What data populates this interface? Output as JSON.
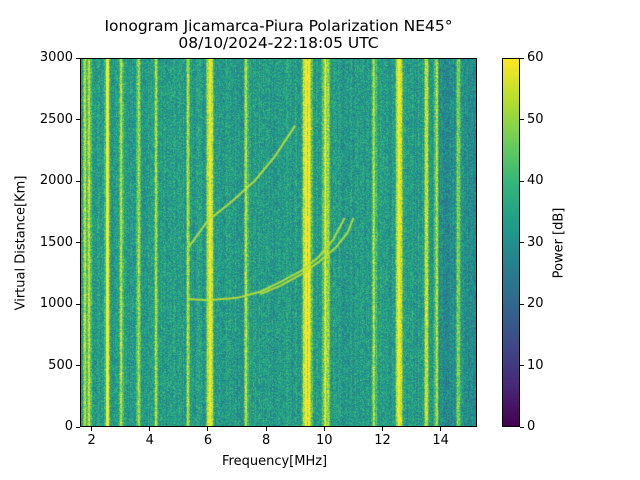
{
  "chart_data": {
    "type": "heatmap",
    "title": "Ionogram Jicamarca-Piura Polarization NE45°",
    "subtitle": "08/10/2024-22:18:05 UTC",
    "xlabel": "Frequency[MHz]",
    "ylabel": "Virtual Distance[Km]",
    "xlim": [
      1.6,
      15.25
    ],
    "ylim": [
      0,
      3000
    ],
    "xticks": [
      "2",
      "4",
      "6",
      "8",
      "10",
      "12",
      "14"
    ],
    "yticks": [
      "0",
      "500",
      "1000",
      "1500",
      "2000",
      "2500",
      "3000"
    ],
    "colorbar": {
      "label": "Power [dB]",
      "range": [
        0,
        60
      ],
      "ticks": [
        "0",
        "10",
        "20",
        "30",
        "40",
        "50",
        "60"
      ],
      "colormap": "viridis"
    },
    "background_power_db": 33,
    "interference_frequencies_mhz": [
      1.75,
      1.9,
      2.5,
      2.55,
      3.0,
      3.6,
      4.2,
      5.3,
      6.0,
      6.1,
      7.3,
      9.3,
      9.4,
      9.5,
      10.0,
      10.1,
      11.7,
      12.5,
      12.6,
      13.5,
      13.85,
      14.6
    ],
    "traces": [
      {
        "name": "one-hop-O",
        "x": [
          5.3,
          6.0,
          7.0,
          7.8,
          8.5,
          9.2,
          9.8,
          10.3,
          10.7
        ],
        "y": [
          1040,
          1030,
          1050,
          1100,
          1180,
          1270,
          1380,
          1520,
          1700
        ]
      },
      {
        "name": "one-hop-X",
        "x": [
          7.8,
          8.5,
          9.2,
          9.8,
          10.4,
          10.8,
          11.0
        ],
        "y": [
          1080,
          1150,
          1240,
          1340,
          1460,
          1580,
          1700
        ]
      },
      {
        "name": "two-hop",
        "x": [
          5.3,
          6.0,
          6.8,
          7.6,
          8.3,
          9.0
        ],
        "y": [
          1450,
          1680,
          1830,
          2000,
          2200,
          2450
        ]
      }
    ]
  }
}
